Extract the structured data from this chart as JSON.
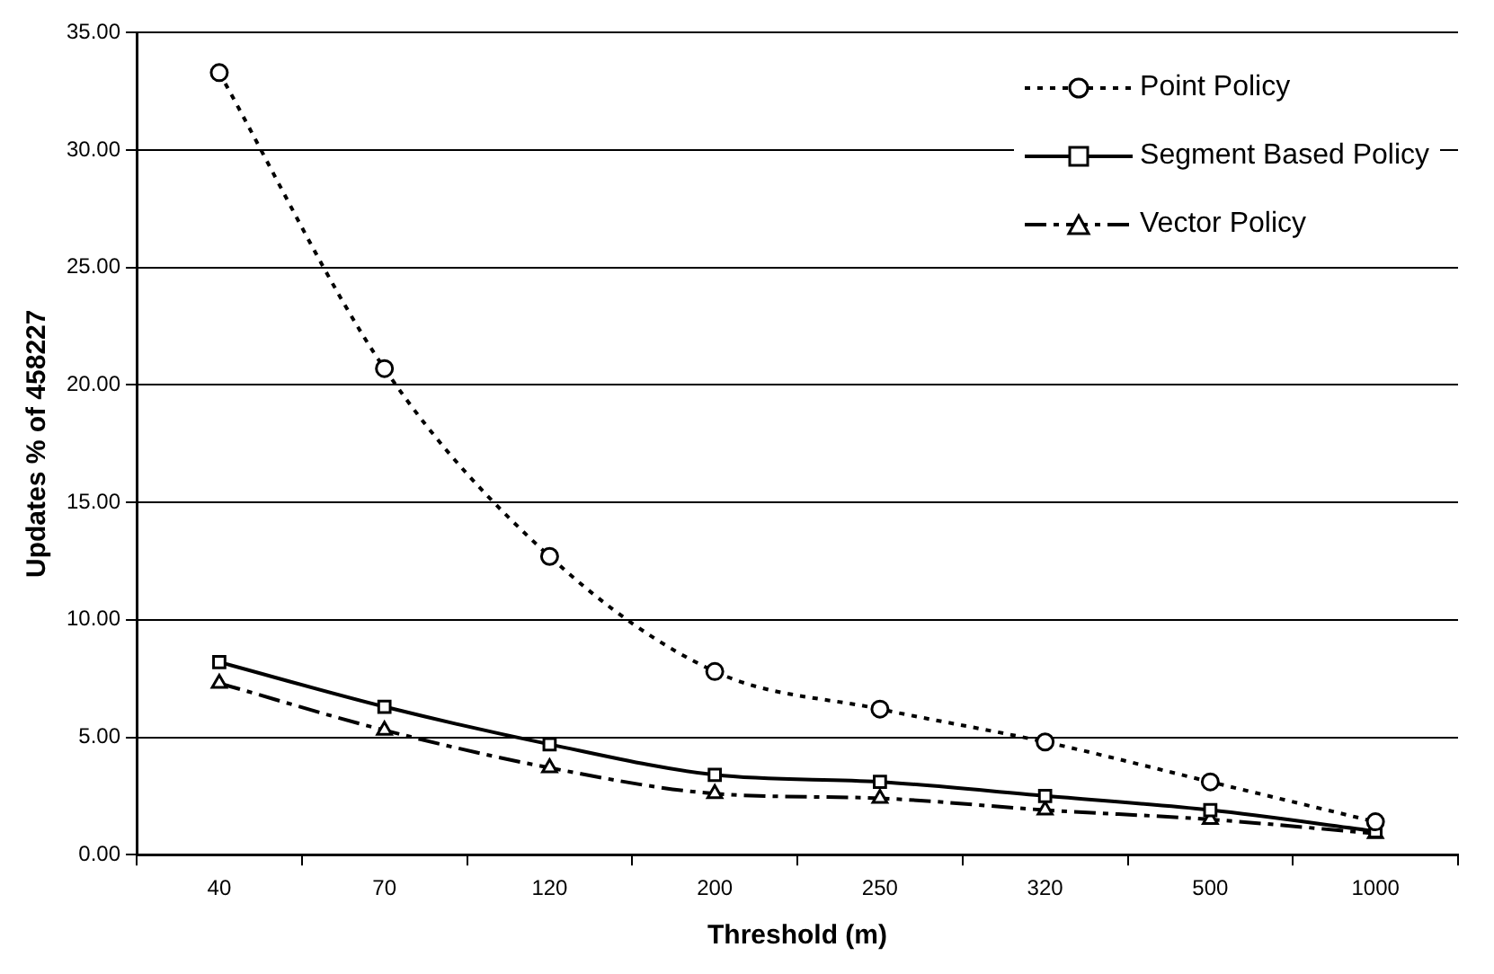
{
  "chart_data": {
    "type": "line",
    "xlabel": "Threshold (m)",
    "ylabel": "Updates % of 458227",
    "categories": [
      "40",
      "70",
      "120",
      "200",
      "250",
      "320",
      "500",
      "1000"
    ],
    "series": [
      {
        "name": "Point Policy",
        "color": "#000000",
        "marker": "circle",
        "line_style": "dotted",
        "values": [
          33.3,
          20.7,
          12.7,
          7.8,
          6.2,
          4.8,
          3.1,
          1.4
        ]
      },
      {
        "name": "Segment Based Policy",
        "color": "#000000",
        "marker": "square",
        "line_style": "solid",
        "values": [
          8.2,
          6.3,
          4.7,
          3.4,
          3.1,
          2.5,
          1.9,
          1.0
        ]
      },
      {
        "name": "Vector Policy",
        "color": "#000000",
        "marker": "triangle",
        "line_style": "dashed",
        "values": [
          7.3,
          5.3,
          3.7,
          2.6,
          2.4,
          1.9,
          1.5,
          0.9
        ]
      }
    ],
    "ylim": [
      0,
      35
    ],
    "yticks": [
      {
        "value": 0,
        "label": "0.00"
      },
      {
        "value": 5,
        "label": "5.00"
      },
      {
        "value": 10,
        "label": "10.00"
      },
      {
        "value": 15,
        "label": "15.00"
      },
      {
        "value": 20,
        "label": "20.00"
      },
      {
        "value": 25,
        "label": "25.00"
      },
      {
        "value": 30,
        "label": "30.00"
      },
      {
        "value": 35,
        "label": "35.00"
      }
    ],
    "grid": "y",
    "legend": "top right"
  }
}
